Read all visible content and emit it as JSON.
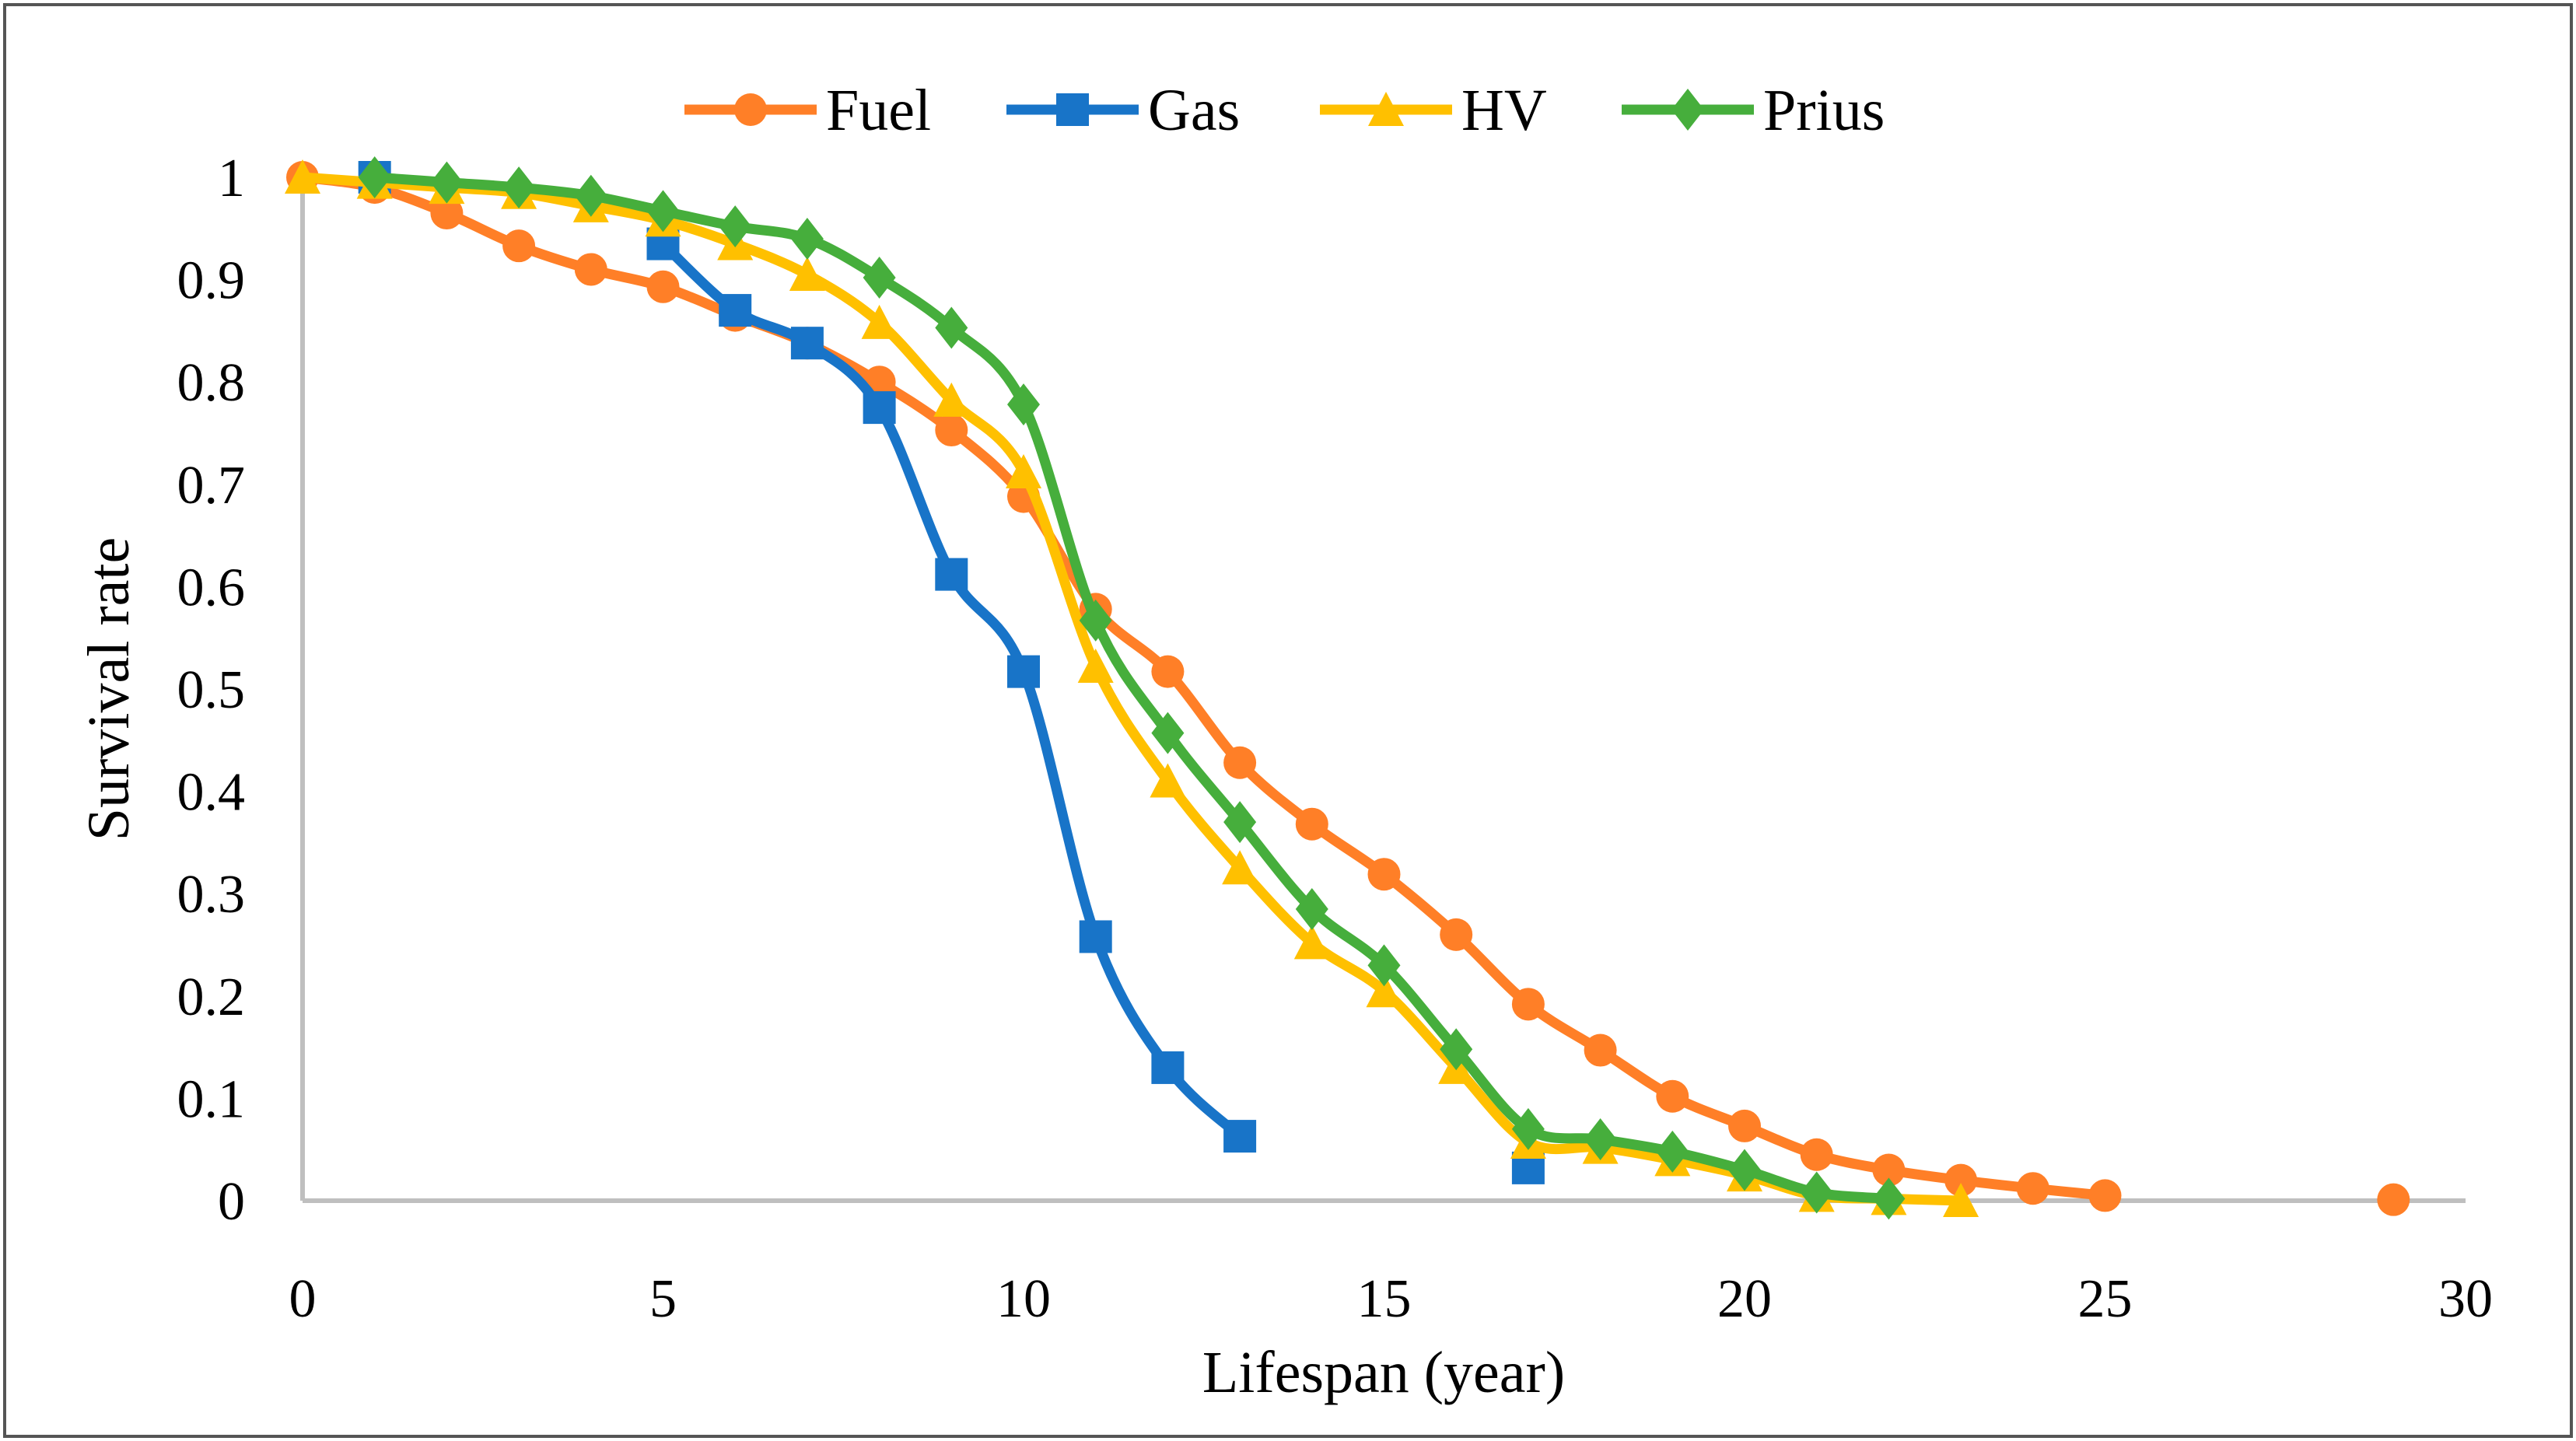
{
  "chart_data": {
    "type": "line",
    "title": "",
    "xlabel": "Lifespan (year)",
    "ylabel": "Survival rate",
    "xlim": [
      0,
      30
    ],
    "ylim": [
      0,
      1
    ],
    "xticks": [
      "0",
      "5",
      "10",
      "15",
      "20",
      "25",
      "30"
    ],
    "xtick_values": [
      0,
      5,
      10,
      15,
      20,
      25,
      30
    ],
    "yticks": [
      "0",
      "0.1",
      "0.2",
      "0.3",
      "0.4",
      "0.5",
      "0.6",
      "0.7",
      "0.8",
      "0.9",
      "1"
    ],
    "ytick_values": [
      0,
      0.1,
      0.2,
      0.3,
      0.4,
      0.5,
      0.6,
      0.7,
      0.8,
      0.9,
      1
    ],
    "grid": false,
    "smooth": true,
    "legend_placement": "top-center",
    "series": [
      {
        "name": "Fuel",
        "color": "#FF7F27",
        "marker": "circle",
        "x": [
          0,
          1,
          2,
          3,
          4,
          5,
          6,
          7,
          8,
          9,
          10,
          11,
          12,
          13,
          14,
          15,
          16,
          17,
          18,
          19,
          20,
          21,
          22,
          23,
          24,
          25,
          29
        ],
        "y": [
          1,
          0.99,
          0.965,
          0.933,
          0.91,
          0.893,
          0.865,
          0.838,
          0.8,
          0.753,
          0.688,
          0.578,
          0.517,
          0.428,
          0.368,
          0.319,
          0.26,
          0.192,
          0.147,
          0.102,
          0.073,
          0.045,
          0.03,
          0.02,
          0.012,
          0.005,
          0.001
        ]
      },
      {
        "name": "Gas",
        "color": "#1874C8",
        "marker": "square",
        "x": [
          1,
          5,
          6,
          7,
          8,
          9,
          10,
          11,
          12,
          13,
          17
        ],
        "y": [
          1,
          0.935,
          0.87,
          0.838,
          0.775,
          0.612,
          0.517,
          0.258,
          0.13,
          0.063,
          0.032
        ]
      },
      {
        "name": "HV",
        "color": "#FFC000",
        "marker": "triangle",
        "x": [
          0,
          1,
          2,
          3,
          4,
          5,
          6,
          7,
          8,
          9,
          10,
          11,
          12,
          13,
          14,
          15,
          16,
          17,
          18,
          19,
          20,
          21,
          22,
          23
        ],
        "y": [
          1,
          0.995,
          0.99,
          0.985,
          0.972,
          0.958,
          0.935,
          0.905,
          0.858,
          0.782,
          0.712,
          0.522,
          0.41,
          0.325,
          0.252,
          0.205,
          0.13,
          0.057,
          0.052,
          0.04,
          0.025,
          0.005,
          0.002,
          0.0
        ]
      },
      {
        "name": "Prius",
        "color": "#46AE3C",
        "marker": "diamond",
        "x": [
          1,
          2,
          3,
          4,
          5,
          6,
          7,
          8,
          9,
          10,
          11,
          12,
          13,
          14,
          15,
          16,
          17,
          18,
          19,
          20,
          21,
          22
        ],
        "y": [
          1,
          0.995,
          0.99,
          0.982,
          0.967,
          0.952,
          0.94,
          0.902,
          0.853,
          0.778,
          0.567,
          0.457,
          0.37,
          0.285,
          0.23,
          0.148,
          0.07,
          0.06,
          0.048,
          0.03,
          0.008,
          0.002
        ]
      }
    ]
  }
}
